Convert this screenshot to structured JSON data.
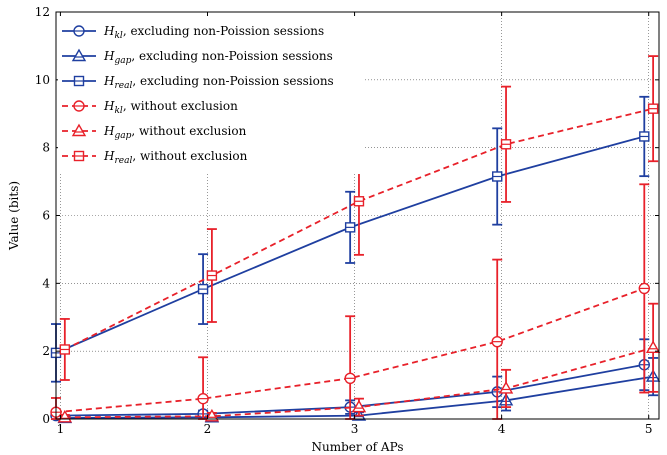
{
  "chart_data": {
    "type": "line",
    "xlabel": "Number of APs",
    "ylabel": "Value (bits)",
    "xlim": [
      0.97,
      5.07
    ],
    "ylim": [
      0,
      12
    ],
    "x_ticks": [
      "1",
      "2",
      "3",
      "4",
      "5"
    ],
    "y_ticks": [
      "0",
      "2",
      "4",
      "6",
      "8",
      "10",
      "12"
    ],
    "grid": true,
    "legend_position": "top-left",
    "colors": {
      "blue": "#1f3fa0",
      "red": "#e8212a"
    },
    "series": [
      {
        "name_main": "H",
        "name_sub": "kl",
        "name_rest": ", excluding non-Poission sessions",
        "color": "blue",
        "dashed": false,
        "marker": "circle",
        "offset": -0.03,
        "x": [
          1,
          2,
          3,
          4,
          5
        ],
        "y": [
          0.1,
          0.15,
          0.35,
          0.8,
          1.6
        ],
        "err": [
          0.1,
          0.1,
          0.2,
          0.45,
          0.75
        ]
      },
      {
        "name_main": "H",
        "name_sub": "gap",
        "name_rest": ", excluding non-Poission sessions",
        "color": "blue",
        "dashed": false,
        "marker": "triangle",
        "offset": 0.03,
        "x": [
          1,
          2,
          3,
          4,
          5
        ],
        "y": [
          0.03,
          0.05,
          0.1,
          0.55,
          1.25
        ],
        "err": [
          0.05,
          0.05,
          0.1,
          0.3,
          0.55
        ]
      },
      {
        "name_main": "H",
        "name_sub": "real",
        "name_rest": ", excluding non-Poission sessions",
        "color": "blue",
        "dashed": false,
        "marker": "square",
        "offset": -0.03,
        "x": [
          1,
          2,
          3,
          4,
          5
        ],
        "y": [
          1.95,
          3.83,
          5.65,
          7.15,
          8.33
        ],
        "err": [
          0.85,
          1.03,
          1.05,
          1.42,
          1.17
        ]
      },
      {
        "name_main": "H",
        "name_sub": "kl",
        "name_rest": ", without exclusion",
        "color": "red",
        "dashed": true,
        "marker": "circle",
        "offset": -0.03,
        "x": [
          1,
          2,
          3,
          4,
          5
        ],
        "y": [
          0.2,
          0.6,
          1.2,
          2.28,
          3.85
        ],
        "err": [
          0.42,
          1.22,
          1.83,
          2.42,
          3.07
        ]
      },
      {
        "name_main": "H",
        "name_sub": "gap",
        "name_rest": ", without exclusion",
        "color": "red",
        "dashed": true,
        "marker": "triangle",
        "offset": 0.03,
        "x": [
          1,
          2,
          3,
          4,
          5
        ],
        "y": [
          0.05,
          0.08,
          0.35,
          0.9,
          2.1
        ],
        "err": [
          0.07,
          0.1,
          0.25,
          0.55,
          1.3
        ]
      },
      {
        "name_main": "H",
        "name_sub": "real",
        "name_rest": ", without exclusion",
        "color": "red",
        "dashed": true,
        "marker": "square",
        "offset": 0.03,
        "x": [
          1,
          2,
          3,
          4,
          5
        ],
        "y": [
          2.05,
          4.23,
          6.42,
          8.1,
          9.15
        ],
        "err": [
          0.9,
          1.37,
          1.58,
          1.7,
          1.55
        ]
      }
    ]
  }
}
